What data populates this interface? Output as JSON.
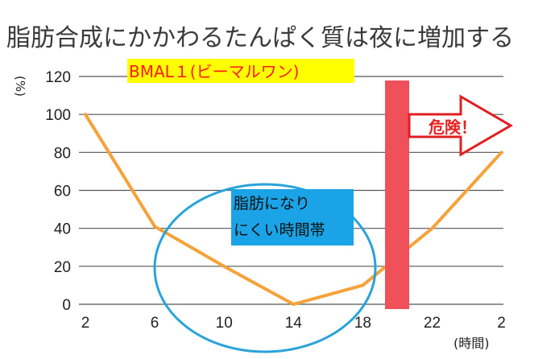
{
  "colors": {
    "line": "#f6a23a",
    "grid": "#555555",
    "banner_bg": "#ffff00",
    "banner_text": "#ff1a1a",
    "ellipse": "#2aa3da",
    "label_bg": "#1aa3e6",
    "danger_bar": "#f0505a",
    "arrow": "#e02020"
  },
  "annotations": {
    "bmal_label": "BMAL１(ビーマルワン)",
    "zone_label_line1": "脂肪になり",
    "zone_label_line2": "にくい時間帯",
    "danger_label": "危険！"
  },
  "chart_data": {
    "type": "line",
    "title": "脂肪合成にかかわるたんぱく質は夜に増加する",
    "ylabel": "(%)",
    "xlabel": "(時間)",
    "ylim": [
      0,
      120
    ],
    "yticks": [
      "0",
      "20",
      "40",
      "60",
      "80",
      "100",
      "120"
    ],
    "xtick_labels": [
      "2",
      "6",
      "10",
      "14",
      "18",
      "22",
      "2"
    ],
    "grid": true,
    "series": [
      {
        "name": "BMAL１(ビーマルワン)",
        "points": [
          {
            "x": "2",
            "y": 100
          },
          {
            "x": "6",
            "y": 41
          },
          {
            "x": "10",
            "y": 20
          },
          {
            "x": "14",
            "y": 0
          },
          {
            "x": "18",
            "y": 10
          },
          {
            "x": "22",
            "y": 40
          },
          {
            "x": "2",
            "y": 80
          }
        ]
      }
    ]
  }
}
